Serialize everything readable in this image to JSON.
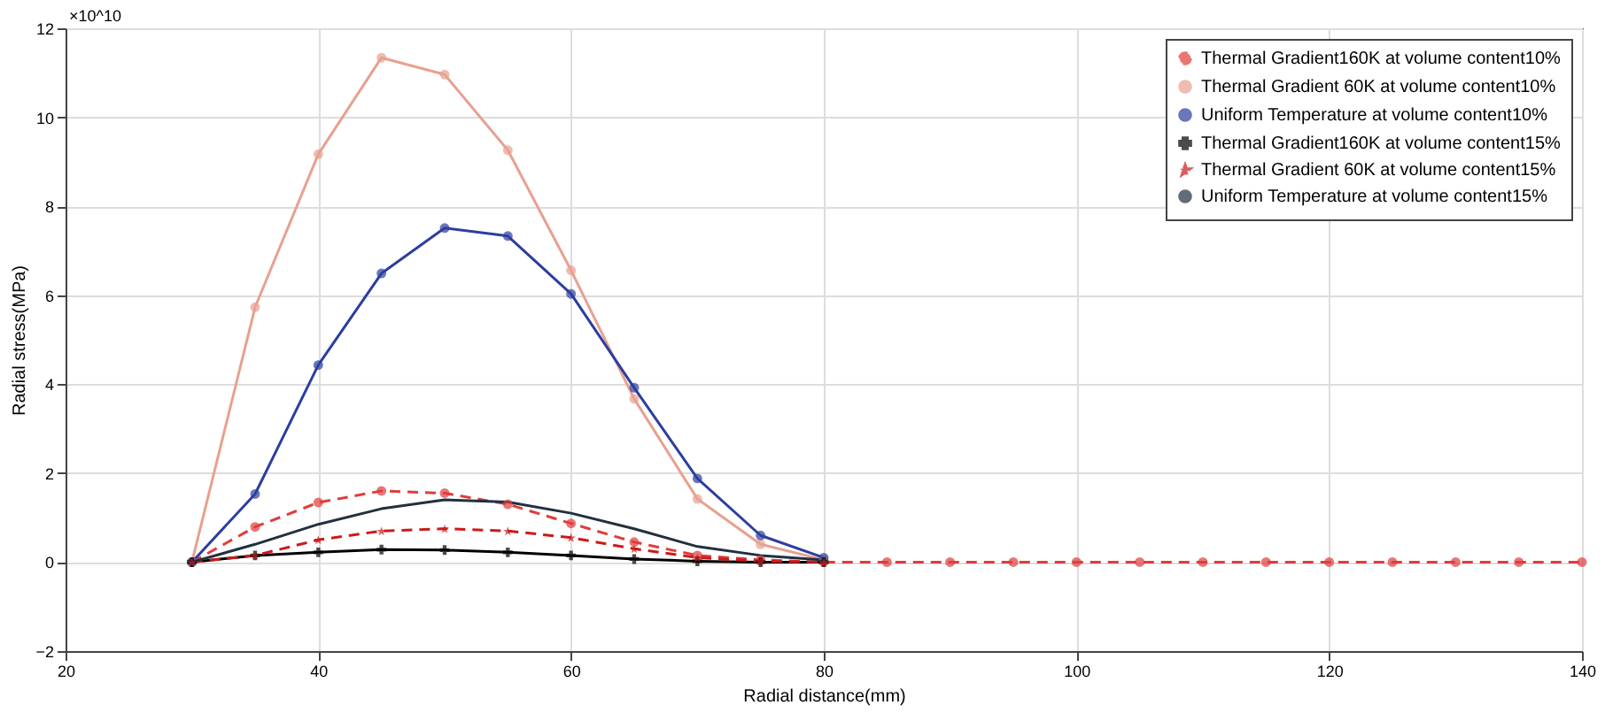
{
  "chart_data": {
    "type": "line",
    "xlabel": "Radial distance(mm)",
    "ylabel": "Radial stress(MPa)",
    "annotations": [
      "×10^10"
    ],
    "x": [
      30,
      35,
      40,
      45,
      50,
      55,
      60,
      65,
      70,
      75,
      80,
      85,
      90,
      95,
      100,
      105,
      110,
      115,
      120,
      125,
      130,
      135,
      140
    ],
    "xlim": [
      20,
      140
    ],
    "xticks": [
      20,
      40,
      60,
      80,
      100,
      120,
      140
    ],
    "ylim": [
      -2,
      12
    ],
    "yticks": [
      -2,
      0,
      2,
      4,
      6,
      8,
      10,
      12
    ],
    "grid": true,
    "legend": "top right",
    "series": [
      {
        "name": "Thermal Gradient160K at volume content10%",
        "color": "#e03c3c",
        "marker": "circle",
        "line_style": "dashed",
        "values": [
          0,
          0.79,
          1.34,
          1.6,
          1.55,
          1.3,
          0.87,
          0.45,
          0.15,
          0.05,
          0,
          0,
          0,
          0,
          0,
          0,
          0,
          0,
          0,
          0,
          0,
          0,
          0
        ]
      },
      {
        "name": "Thermal Gradient 60K at volume content10%",
        "color": "#e8a090",
        "marker": "circle",
        "line_style": "solid",
        "values": [
          0,
          5.73,
          9.17,
          11.34,
          10.96,
          9.26,
          6.56,
          3.67,
          1.42,
          0.4,
          0.05,
          null,
          null,
          null,
          null,
          null,
          null,
          null,
          null,
          null,
          null,
          null,
          null
        ]
      },
      {
        "name": "Uniform Temperature at volume content10%",
        "color": "#2c3e9e",
        "marker": "circle",
        "line_style": "solid",
        "values": [
          0,
          1.53,
          4.43,
          6.49,
          7.51,
          7.33,
          6.03,
          3.92,
          1.88,
          0.6,
          0.1,
          null,
          null,
          null,
          null,
          null,
          null,
          null,
          null,
          null,
          null,
          null,
          null
        ]
      },
      {
        "name": "Thermal Gradient160K at volume content15%",
        "color": "#000000",
        "marker": "cross",
        "line_style": "solid",
        "values": [
          0,
          0.15,
          0.22,
          0.28,
          0.27,
          0.22,
          0.15,
          0.07,
          0.02,
          0,
          0,
          null,
          null,
          null,
          null,
          null,
          null,
          null,
          null,
          null,
          null,
          null,
          null
        ]
      },
      {
        "name": "Thermal Gradient 60K at volume content15%",
        "color": "#cc1a1a",
        "marker": "star",
        "line_style": "dashed",
        "values": [
          0,
          0.15,
          0.5,
          0.7,
          0.75,
          0.7,
          0.55,
          0.3,
          0.1,
          0.02,
          0,
          null,
          null,
          null,
          null,
          null,
          null,
          null,
          null,
          null,
          null,
          null,
          null
        ]
      },
      {
        "name": "Uniform Temperature at volume content15%",
        "color": "#203040",
        "marker": "none",
        "line_style": "solid",
        "values": [
          0,
          0.4,
          0.85,
          1.2,
          1.4,
          1.35,
          1.1,
          0.75,
          0.35,
          0.15,
          0.05,
          null,
          null,
          null,
          null,
          null,
          null,
          null,
          null,
          null,
          null,
          null,
          null
        ]
      }
    ]
  }
}
